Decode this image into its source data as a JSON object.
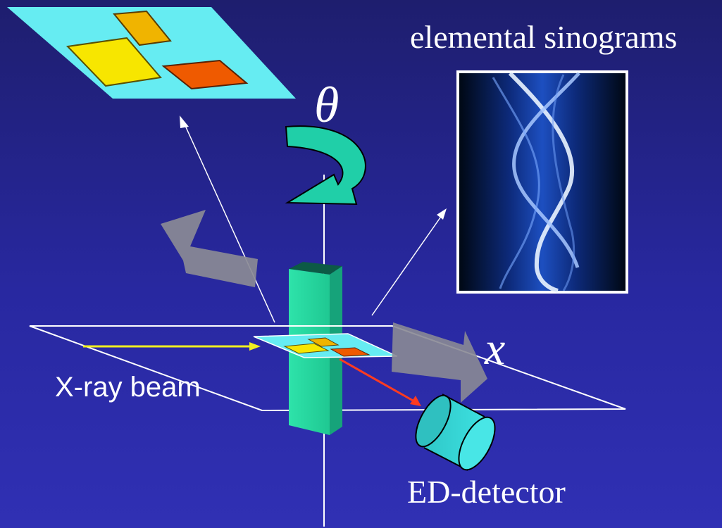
{
  "labels": {
    "title": "elemental sinograms",
    "theta": "θ",
    "x_axis": "x",
    "beam": "X-ray beam",
    "detector": "ED-detector"
  },
  "colors": {
    "background_top": "#1e1e6e",
    "background_bottom": "#3030b4",
    "sample_plate": "#66ecf2",
    "yellow_block": "#f7e600",
    "orange_block": "#f0b400",
    "red_block": "#ef5a00",
    "column": "#23d9a0",
    "rotation_arrow": "#20cfa8",
    "beam": "#f0ef20",
    "fluorescence": "#ff3b20",
    "detector": "#33d6d6",
    "translation_arrow": "#8a8a95",
    "lines": "#ffffff"
  }
}
